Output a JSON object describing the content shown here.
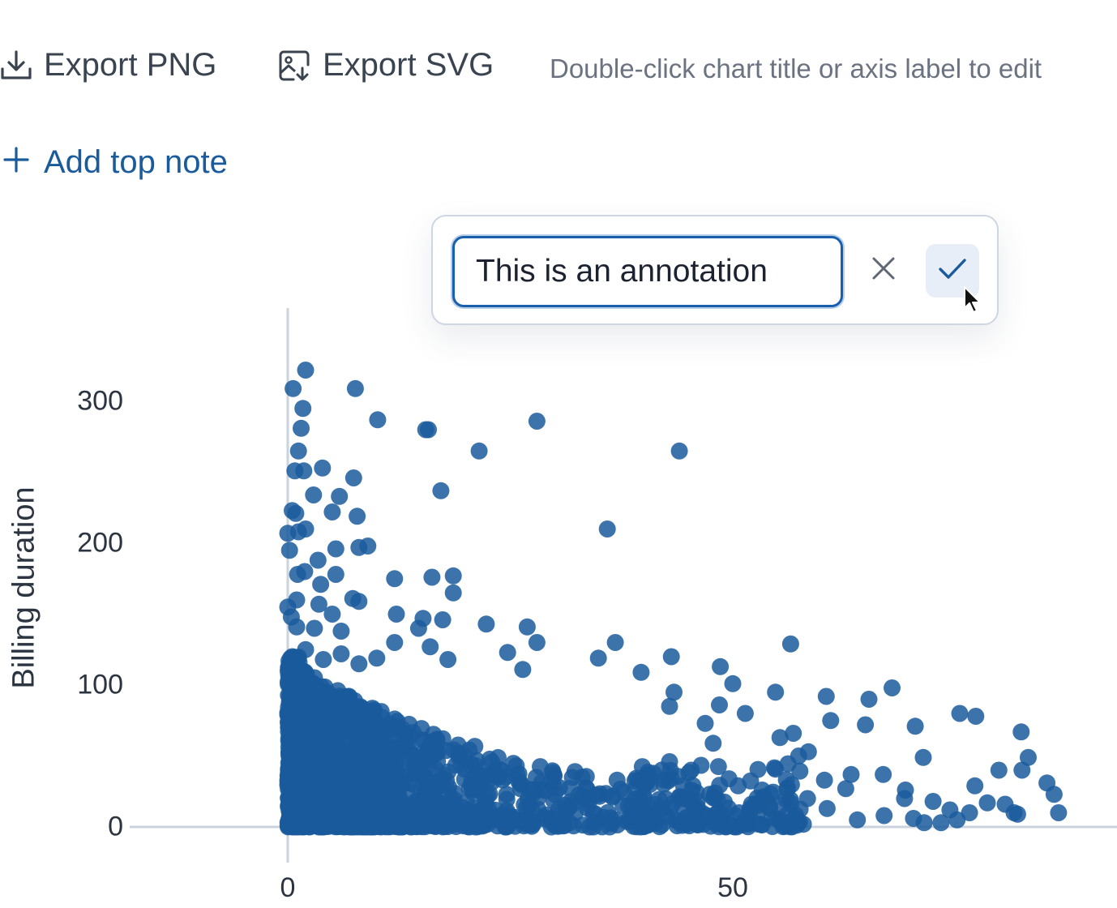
{
  "toolbar": {
    "export_png_label": "Export PNG",
    "export_svg_label": "Export SVG",
    "hint": "Double-click chart title or axis label to edit"
  },
  "add_note": {
    "label": "Add top note"
  },
  "annotation_editor": {
    "value": "This is an annotation",
    "cancel_icon": "close-icon",
    "confirm_icon": "check-icon"
  },
  "colors": {
    "point": "#1a5b9c",
    "axis": "#cbd3de",
    "link": "#1a5b9c",
    "focus": "#1a5fad"
  },
  "chart_data": {
    "type": "scatter",
    "title": "",
    "xlabel": "",
    "ylabel": "Billing duration",
    "xlim": [
      -19,
      97
    ],
    "ylim": [
      0,
      345
    ],
    "x_ticks": [
      "0",
      "50"
    ],
    "y_ticks": [
      "0",
      "100",
      "200",
      "300"
    ],
    "grid": false,
    "series": [
      {
        "points": [
          [
            2,
            322
          ],
          [
            0.6,
            309
          ],
          [
            7.6,
            309
          ],
          [
            1.7,
            295
          ],
          [
            1.5,
            281
          ],
          [
            10.1,
            287
          ],
          [
            15.5,
            280
          ],
          [
            15.8,
            280
          ],
          [
            28,
            286
          ],
          [
            1.2,
            265
          ],
          [
            21.5,
            265
          ],
          [
            44,
            265
          ],
          [
            0.8,
            251
          ],
          [
            1.8,
            251
          ],
          [
            3.9,
            253
          ],
          [
            7.4,
            246
          ],
          [
            17.2,
            237
          ],
          [
            2.9,
            234
          ],
          [
            5.8,
            233
          ],
          [
            0.5,
            223
          ],
          [
            0.9,
            221
          ],
          [
            5,
            222
          ],
          [
            7.8,
            219
          ],
          [
            35.9,
            210
          ],
          [
            0,
            207
          ],
          [
            1.2,
            208
          ],
          [
            2,
            210
          ],
          [
            8,
            197
          ],
          [
            9,
            198
          ],
          [
            0.2,
            195
          ],
          [
            5.4,
            196
          ],
          [
            3.4,
            188
          ],
          [
            1.1,
            178
          ],
          [
            1.9,
            180
          ],
          [
            5.4,
            178
          ],
          [
            12,
            175
          ],
          [
            16.2,
            176
          ],
          [
            18.6,
            177
          ],
          [
            3.7,
            171
          ],
          [
            18.6,
            165
          ],
          [
            7.3,
            161
          ],
          [
            8,
            159
          ],
          [
            1,
            160
          ],
          [
            0,
            155
          ],
          [
            0.4,
            148
          ],
          [
            3.5,
            157
          ],
          [
            5,
            150
          ],
          [
            12.2,
            150
          ],
          [
            15.2,
            147
          ],
          [
            17.4,
            146
          ],
          [
            1,
            141
          ],
          [
            3,
            140
          ],
          [
            6,
            138
          ],
          [
            22.3,
            143
          ],
          [
            26.9,
            141
          ],
          [
            14.7,
            140
          ],
          [
            36.8,
            130
          ],
          [
            28,
            130
          ],
          [
            12,
            130
          ],
          [
            16,
            127
          ],
          [
            24.7,
            123
          ],
          [
            34.9,
            119
          ],
          [
            43.1,
            120
          ],
          [
            56.5,
            129
          ],
          [
            0.5,
            120
          ],
          [
            2,
            125
          ],
          [
            4,
            118
          ],
          [
            6,
            122
          ],
          [
            8,
            115
          ],
          [
            10,
            119
          ],
          [
            18,
            118
          ],
          [
            26.4,
            111
          ],
          [
            39.7,
            109
          ],
          [
            48.6,
            113
          ],
          [
            50,
            101
          ],
          [
            43.4,
            95
          ],
          [
            54.8,
            95
          ],
          [
            60.5,
            92
          ],
          [
            65.3,
            90
          ],
          [
            67.9,
            98
          ],
          [
            75.5,
            80
          ],
          [
            77.3,
            78
          ],
          [
            61,
            75
          ],
          [
            70.5,
            71
          ],
          [
            64.9,
            72
          ],
          [
            82.4,
            67
          ],
          [
            83.2,
            49
          ],
          [
            71.4,
            49
          ],
          [
            79.9,
            40
          ],
          [
            82.5,
            40
          ],
          [
            85.3,
            31
          ],
          [
            86.1,
            23
          ],
          [
            86.6,
            10
          ],
          [
            72.5,
            18
          ],
          [
            74.4,
            12
          ],
          [
            76.6,
            10
          ],
          [
            78.6,
            17
          ],
          [
            80.6,
            16
          ],
          [
            81.6,
            10
          ],
          [
            82,
            9
          ],
          [
            70.3,
            6
          ],
          [
            71.5,
            3
          ],
          [
            73.4,
            3
          ],
          [
            75.2,
            5
          ],
          [
            77.2,
            29
          ],
          [
            69.3,
            20
          ],
          [
            67,
            8
          ],
          [
            64,
            5
          ],
          [
            62.7,
            27
          ],
          [
            60.6,
            13
          ],
          [
            57.3,
            3
          ],
          [
            55.4,
            5
          ],
          [
            44.2,
            20
          ],
          [
            48.3,
            19
          ],
          [
            50.7,
            10
          ],
          [
            52.1,
            16
          ],
          [
            53.3,
            26
          ],
          [
            58.4,
            20
          ],
          [
            60.3,
            33
          ],
          [
            63.3,
            37
          ],
          [
            66.9,
            37
          ],
          [
            69.4,
            26
          ],
          [
            57.4,
            50
          ],
          [
            58.5,
            53
          ],
          [
            55.3,
            63
          ],
          [
            56.8,
            66
          ],
          [
            48.5,
            86
          ],
          [
            51.4,
            80
          ],
          [
            46.9,
            73
          ],
          [
            42.9,
            85
          ],
          [
            47.8,
            59
          ],
          [
            42.9,
            46
          ],
          [
            40.4,
            36
          ],
          [
            37,
            33
          ],
          [
            33.6,
            27
          ],
          [
            30,
            23
          ],
          [
            27,
            20
          ]
        ]
      }
    ]
  }
}
